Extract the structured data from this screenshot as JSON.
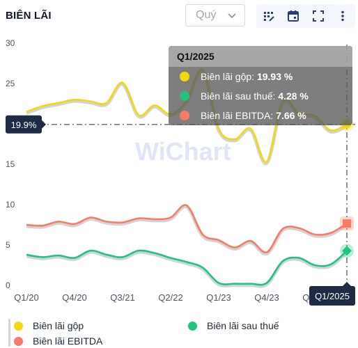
{
  "header": {
    "title": "BIÊN LÃI"
  },
  "period_select": {
    "value": "Quý"
  },
  "toolbar": {
    "icons": [
      "chart-options-icon",
      "calendar-icon",
      "fullscreen-icon",
      "more-vertical-icon"
    ]
  },
  "watermark": {
    "text": "WiChart"
  },
  "tooltip": {
    "period": "Q1/2025",
    "rows": [
      {
        "label": "Biên lãi gộp: ",
        "value": "19.93 %",
        "color": "#f2d90b"
      },
      {
        "label": "Biên lãi sau thuế: ",
        "value": "4.28 %",
        "color": "#22c27f"
      },
      {
        "label": "Biên lãi EBITDA: ",
        "value": "7.66 %",
        "color": "#f57d66"
      }
    ]
  },
  "crosshair": {
    "y_label": "19.9%",
    "x_label": "Q1/2025"
  },
  "legend": [
    {
      "name": "Biên lãi gộp",
      "color": "#f2d90b"
    },
    {
      "name": "Biên lãi sau thuế",
      "color": "#22c27f"
    },
    {
      "name": "Biên lãi EBITDA",
      "color": "#f57d66"
    }
  ],
  "chart_data": {
    "type": "line",
    "ylim": [
      0,
      30
    ],
    "yticks": [
      0,
      5,
      10,
      15,
      20,
      25,
      30
    ],
    "xtick_labels": [
      "Q1/20",
      "Q4/20",
      "Q3/21",
      "Q2/22",
      "Q1/23",
      "Q4/23",
      "Q3/24"
    ],
    "x": [
      "Q1/20",
      "Q2/20",
      "Q3/20",
      "Q4/20",
      "Q1/21",
      "Q2/21",
      "Q3/21",
      "Q4/21",
      "Q1/22",
      "Q2/22",
      "Q3/22",
      "Q4/22",
      "Q1/23",
      "Q2/23",
      "Q3/23",
      "Q4/23",
      "Q1/24",
      "Q2/24",
      "Q3/24",
      "Q4/24",
      "Q1/25"
    ],
    "series": [
      {
        "name": "Biên lãi gộp",
        "color": "#f2d90b",
        "values": [
          21.5,
          22.2,
          22.6,
          23.0,
          22.8,
          22.6,
          25.1,
          21.1,
          22.3,
          21.2,
          22.9,
          26.7,
          19.4,
          18.1,
          19.4,
          15.3,
          22.8,
          21.3,
          21.0,
          19.2,
          19.93
        ]
      },
      {
        "name": "Biên lãi sau thuế",
        "color": "#22c27f",
        "values": [
          3.8,
          3.5,
          3.7,
          3.4,
          4.3,
          3.8,
          3.5,
          4.3,
          4.0,
          3.4,
          2.9,
          2.2,
          0.3,
          0.2,
          0.2,
          0.3,
          3.0,
          3.4,
          2.5,
          2.6,
          4.28
        ]
      },
      {
        "name": "Biên lãi EBITDA",
        "color": "#f57d66",
        "values": [
          7.5,
          7.4,
          7.9,
          7.6,
          8.4,
          7.9,
          7.8,
          8.3,
          8.2,
          8.4,
          9.9,
          6.3,
          5.6,
          4.7,
          5.5,
          4.1,
          7.0,
          7.1,
          6.3,
          6.5,
          7.66
        ]
      }
    ]
  }
}
